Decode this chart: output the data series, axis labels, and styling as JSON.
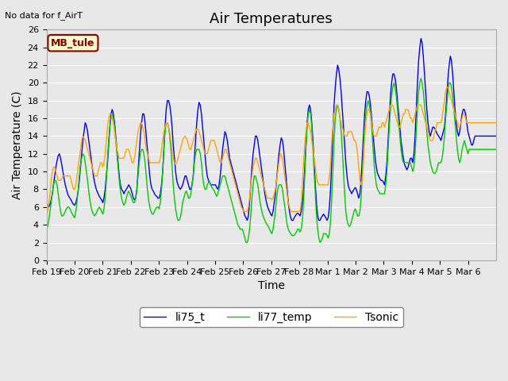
{
  "title": "Air Temperatures",
  "xlabel": "Time",
  "ylabel": "Air Temperature (C)",
  "no_data_text": "No data for f_AirT",
  "mb_tule_label": "MB_tule",
  "legend_labels": [
    "li75_t",
    "li77_temp",
    "Tsonic"
  ],
  "legend_colors": [
    "#0000ff",
    "#00cc00",
    "#ffa500"
  ],
  "ylim": [
    0,
    26
  ],
  "yticks": [
    0,
    2,
    4,
    6,
    8,
    10,
    12,
    14,
    16,
    18,
    20,
    22,
    24,
    26
  ],
  "xtick_labels": [
    "Feb 19",
    "Feb 20",
    "Feb 21",
    "Feb 22",
    "Feb 23",
    "Feb 24",
    "Feb 25",
    "Feb 26",
    "Feb 27",
    "Feb 28",
    "Mar 1",
    "Mar 2",
    "Mar 3",
    "Mar 4",
    "Mar 5",
    "Mar 6"
  ],
  "background_color": "#e8e8e8",
  "grid_color": "#ffffff",
  "title_fontsize": 13,
  "label_fontsize": 10,
  "tick_fontsize": 8
}
